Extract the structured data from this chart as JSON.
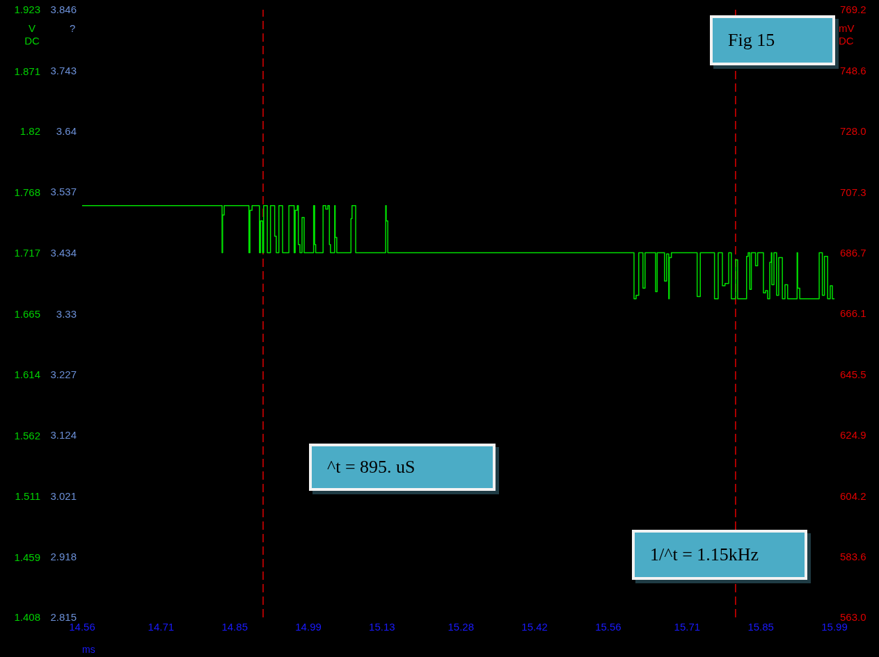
{
  "chart_data": {
    "type": "step",
    "xlabel": "ms",
    "ylabel": "V DC",
    "y2label": "?",
    "y3label": "mV DC",
    "annotations": [
      "Fig 15",
      "^t = 895. uS",
      "1/^t = 1.15kHz"
    ],
    "xlim": [
      14.56,
      15.99
    ],
    "xticks": [
      14.56,
      14.71,
      14.85,
      14.99,
      15.13,
      15.28,
      15.42,
      15.56,
      15.71,
      15.85,
      15.99
    ],
    "ylim": [
      1.408,
      1.923
    ],
    "yticks": [
      1.408,
      1.459,
      1.511,
      1.562,
      1.614,
      1.665,
      1.717,
      1.768,
      1.82,
      1.871,
      1.923
    ],
    "y2lim": [
      2.815,
      3.846
    ],
    "y2ticks": [
      2.815,
      2.918,
      3.021,
      3.124,
      3.227,
      3.33,
      3.434,
      3.537,
      3.64,
      3.743,
      3.846
    ],
    "y3lim": [
      563.0,
      769.2
    ],
    "y3ticks": [
      {
        "value": 563.0,
        "label": "563.0"
      },
      583.6,
      604.2,
      624.9,
      645.5,
      666.1,
      686.7,
      707.3,
      {
        "value": 728.0,
        "label": "728.0"
      },
      748.6,
      769.2
    ],
    "ref_lines": [
      {
        "axis": "x",
        "value": 14.904,
        "color": "#e00000",
        "line_style": "dashed"
      },
      {
        "axis": "x",
        "value": 15.802,
        "color": "#e00000",
        "line_style": "dashed"
      }
    ],
    "grid": false,
    "legend": false,
    "series": [
      {
        "color": "#00e000",
        "x": [
          14.56,
          14.826,
          14.827,
          14.83,
          14.877,
          14.879,
          14.883,
          14.897,
          14.899,
          14.903,
          14.905,
          14.912,
          14.918,
          14.926,
          14.929,
          14.934,
          14.941,
          14.953,
          14.963,
          14.965,
          14.969,
          14.971,
          14.974,
          14.978,
          14.982,
          15.0,
          15.002,
          15.004,
          15.018,
          15.023,
          15.027,
          15.03,
          15.032,
          15.04,
          15.041,
          15.044,
          15.071,
          15.073,
          15.08,
          15.137,
          15.138,
          15.141,
          15.609,
          15.613,
          15.618,
          15.626,
          15.63,
          15.65,
          15.653,
          15.667,
          15.671,
          15.675,
          15.676,
          15.68,
          15.729,
          15.735,
          15.762,
          15.769,
          15.777,
          15.782,
          15.789,
          15.794,
          15.802,
          15.806,
          15.823,
          15.826,
          15.829,
          15.832,
          15.84,
          15.844,
          15.855,
          15.859,
          15.863,
          15.867,
          15.87,
          15.871,
          15.875,
          15.88,
          15.884,
          15.891,
          15.896,
          15.901,
          15.919,
          15.92,
          15.924,
          15.961,
          15.967,
          15.971,
          15.977,
          15.982,
          15.986,
          15.99
        ],
        "values": [
          1.757,
          1.717,
          1.749,
          1.757,
          1.717,
          1.753,
          1.757,
          1.717,
          1.744,
          1.717,
          1.757,
          1.717,
          1.757,
          1.731,
          1.717,
          1.757,
          1.717,
          1.757,
          1.717,
          1.753,
          1.757,
          1.724,
          1.717,
          1.747,
          1.717,
          1.757,
          1.724,
          1.717,
          1.757,
          1.754,
          1.757,
          1.724,
          1.717,
          1.757,
          1.73,
          1.717,
          1.746,
          1.757,
          1.717,
          1.757,
          1.744,
          1.717,
          1.678,
          1.681,
          1.717,
          1.687,
          1.717,
          1.684,
          1.717,
          1.693,
          1.716,
          1.678,
          1.713,
          1.717,
          1.68,
          1.717,
          1.678,
          1.717,
          1.689,
          1.691,
          1.717,
          1.678,
          1.711,
          1.678,
          1.714,
          1.717,
          1.686,
          1.717,
          1.706,
          1.717,
          1.683,
          1.685,
          1.678,
          1.709,
          1.717,
          1.69,
          1.717,
          1.681,
          1.713,
          1.678,
          1.69,
          1.678,
          1.717,
          1.687,
          1.678,
          1.717,
          1.681,
          1.714,
          1.678,
          1.689,
          1.678,
          1.678
        ]
      }
    ]
  }
}
